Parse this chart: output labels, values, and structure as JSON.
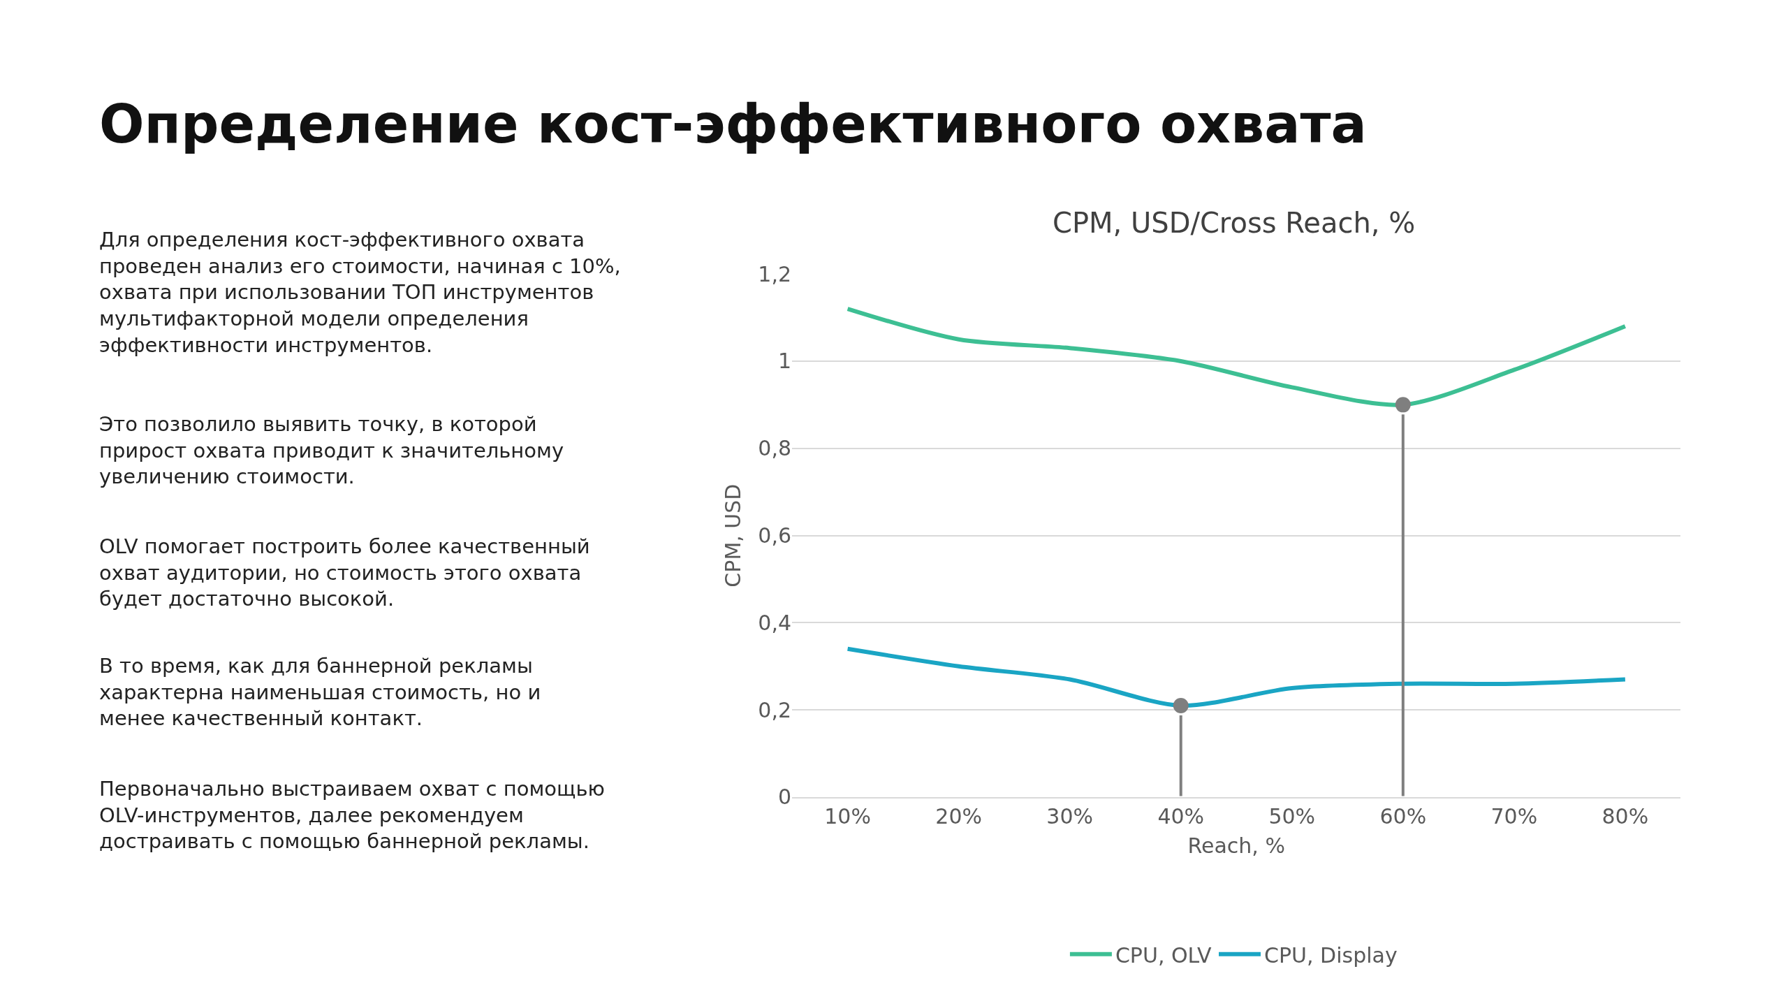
{
  "chart_data": {
    "type": "line",
    "title": "Определение кост-эффективного охвата",
    "subtitle": "CPM, USD/Cross Reach, %",
    "xlabel": "Reach, %",
    "ylabel": "CPM, USD",
    "categories": [
      "10%",
      "20%",
      "30%",
      "40%",
      "50%",
      "60%",
      "70%",
      "80%"
    ],
    "series": [
      {
        "name": "CPU, OLV",
        "color": "#3dbf93",
        "values": [
          1.12,
          1.05,
          1.03,
          1.0,
          0.94,
          0.9,
          0.98,
          1.08
        ]
      },
      {
        "name": "CPU, Display",
        "color": "#1aa5c4",
        "values": [
          0.34,
          0.3,
          0.27,
          0.21,
          0.25,
          0.26,
          0.26,
          0.27
        ]
      },
      {
        "type": "scatter",
        "color": "#7f7f7f",
        "marker": "circle",
        "x": [
          "40%",
          "60%"
        ],
        "values": [
          0.21,
          0.9
        ]
      }
    ],
    "ylim": [
      0,
      1.2
    ],
    "yticks": [
      {
        "value": 0,
        "label": "0"
      },
      {
        "value": 0.2,
        "label": "0,2"
      },
      {
        "value": 0.4,
        "label": "0,4"
      },
      {
        "value": 0.6,
        "label": "0,6"
      },
      {
        "value": 0.8,
        "label": "0,8"
      },
      {
        "value": 1,
        "label": "1"
      },
      {
        "value": 1.2,
        "label": "1,2"
      }
    ],
    "grid": "y",
    "legend": "bottom",
    "annotations": [
      "Для определения кост-эффективного охвата\nпроведен анализ его стоимости, начиная с 10%,\nохвата при использовании ТОП инструментов\nмультифакторной модели определения\nэффективности инструментов.",
      "Это позволило выявить точку, в которой\nприрост охвата приводит к значительному\nувеличению стоимости.",
      "OLV помогает построить более качественный\nохват аудитории, но стоимость этого охвата\nбудет достаточно высокой.",
      "В то время, как для баннерной рекламы\nхарактерна наименьшая стоимость, но и\nменее качественный контакт.",
      "Первоначально выстраиваем охват с помощью\nOLV-инструментов, далее рекомендуем\nдостраивать с помощью баннерной рекламы."
    ]
  }
}
